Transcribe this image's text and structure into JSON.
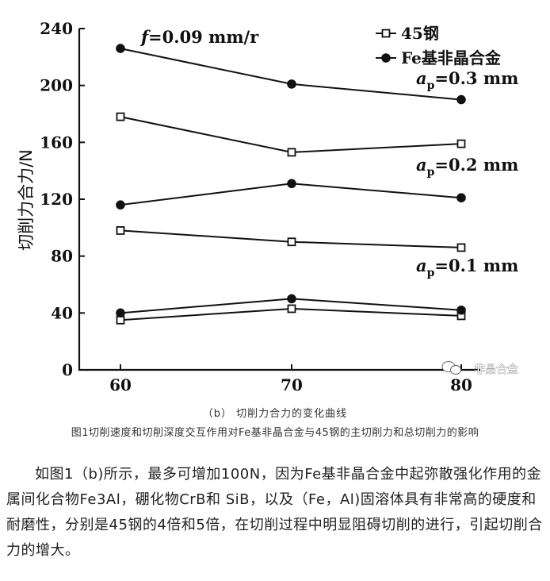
{
  "chart_data": {
    "type": "line",
    "x": [
      60,
      70,
      80
    ],
    "xticks": [
      "60",
      "70",
      "80"
    ],
    "yticks": [
      "0",
      "40",
      "80",
      "120",
      "160",
      "200",
      "240"
    ],
    "ylim": [
      0,
      240
    ],
    "xlim": [
      60,
      80
    ],
    "ylabel": "切削力合力/N",
    "xlabel": "",
    "title": "",
    "grid": false,
    "legend_position": "top-right",
    "legend": [
      {
        "label": "45钢",
        "marker": "open-square"
      },
      {
        "label": "Fe基非晶合金",
        "marker": "filled-circle"
      }
    ],
    "feed_label": "f=0.09 mm/r",
    "annotations": [
      "a_p=0.3 mm",
      "a_p=0.2 mm",
      "a_p=0.1 mm"
    ],
    "series": [
      {
        "name": "45钢",
        "marker": "open-square",
        "depth": "a_p=0.3 mm",
        "values": [
          178,
          153,
          159
        ]
      },
      {
        "name": "Fe基非晶合金",
        "marker": "filled-circle",
        "depth": "a_p=0.3 mm",
        "values": [
          226,
          201,
          190
        ]
      },
      {
        "name": "45钢",
        "marker": "open-square",
        "depth": "a_p=0.2 mm",
        "values": [
          98,
          90,
          86
        ]
      },
      {
        "name": "Fe基非晶合金",
        "marker": "filled-circle",
        "depth": "a_p=0.2 mm",
        "values": [
          116,
          131,
          121
        ]
      },
      {
        "name": "45钢",
        "marker": "open-square",
        "depth": "a_p=0.1 mm",
        "values": [
          35,
          43,
          38
        ]
      },
      {
        "name": "Fe基非晶合金",
        "marker": "filled-circle",
        "depth": "a_p=0.1 mm",
        "values": [
          40,
          50,
          42
        ]
      }
    ]
  },
  "watermark": {
    "text": "非晶合金",
    "icon": "wechat-icon"
  },
  "captions": {
    "sub": "（b）   切削力合力的变化曲线",
    "figure": "图1切削速度和切削深度交互作用对Fe基非晶合金与45钢的主切削力和总切削力的影响"
  },
  "paragraph": "如图1（b)所示，最多可增加100N，因为Fe基非晶合金中起弥散强化作用的金属间化合物Fe3Al，硼化物CrB和 SiB，以及（Fe，Al)固溶体具有非常高的硬度和耐磨性，分别是45钢的4倍和5倍，在切削过程中明显阻碍切削的进行，引起切削合力的增大。"
}
